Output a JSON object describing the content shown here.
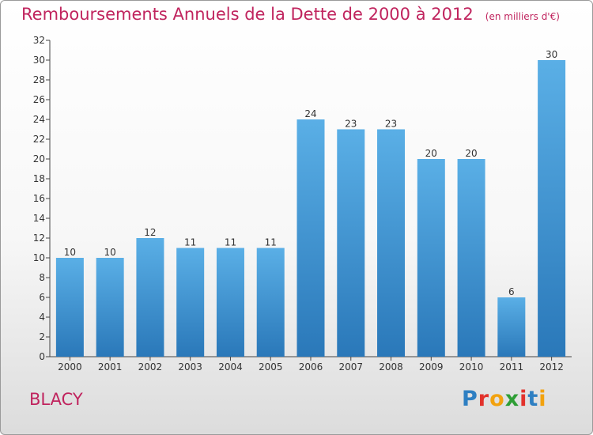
{
  "title": "Remboursements Annuels de la Dette de 2000 à 2012",
  "unit": "(en milliers d'€)",
  "commune": "BLACY",
  "logo": {
    "text": "Proxiti",
    "letter_colors": [
      "#2e7fc2",
      "#e2322c",
      "#f2a20f",
      "#2e9e35",
      "#e2322c",
      "#2e7fc2",
      "#f2a20f"
    ]
  },
  "colors": {
    "title": "#c0245e",
    "bar_top": "#5aafe6",
    "bar_bottom": "#2a78b9"
  },
  "chart_data": {
    "type": "bar",
    "categories": [
      "2000",
      "2001",
      "2002",
      "2003",
      "2004",
      "2005",
      "2006",
      "2007",
      "2008",
      "2009",
      "2010",
      "2011",
      "2012"
    ],
    "values": [
      10,
      10,
      12,
      11,
      11,
      11,
      24,
      23,
      23,
      20,
      20,
      6,
      30
    ],
    "data_labels": [
      "10",
      "10",
      "12",
      "11",
      "11",
      "11",
      "24",
      "23",
      "23",
      "20",
      "20",
      "6",
      "30"
    ],
    "ylim": [
      0,
      32
    ],
    "yticks": [
      "0",
      "2",
      "4",
      "6",
      "8",
      "10",
      "12",
      "14",
      "16",
      "18",
      "20",
      "22",
      "24",
      "26",
      "28",
      "30",
      "32"
    ],
    "grid": false,
    "legend": "none"
  }
}
